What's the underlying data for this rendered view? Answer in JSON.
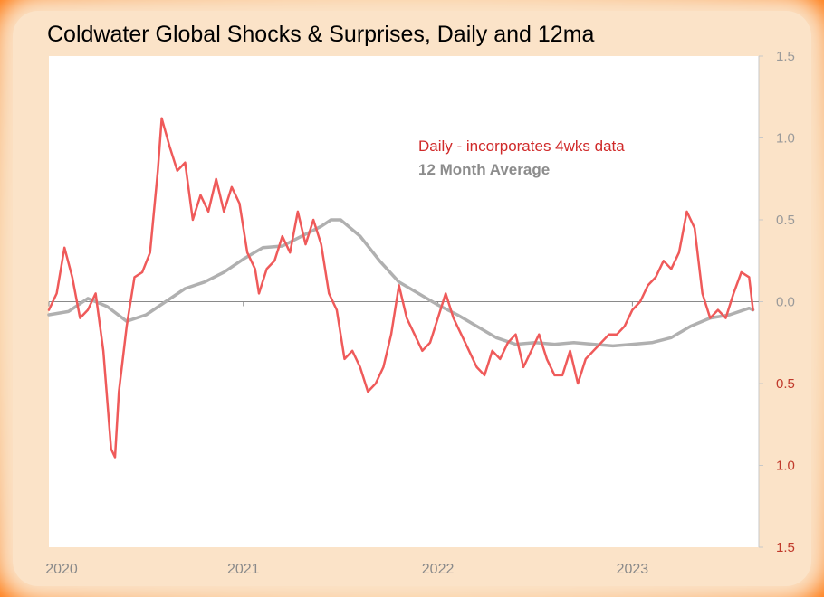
{
  "chart_data": {
    "type": "line",
    "title": "Coldwater Global Shocks  & Surprises, Daily and  12ma",
    "ylim": [
      -1.5,
      1.5
    ],
    "y_axis_inverted_labels": "negative values labelled without sign, drawn in red",
    "y_ticks": [
      {
        "value": 1.5,
        "label": "1.5",
        "color": "#9a9a9a"
      },
      {
        "value": 1.0,
        "label": "1.0",
        "color": "#9a9a9a"
      },
      {
        "value": 0.5,
        "label": "0.5",
        "color": "#9a9a9a"
      },
      {
        "value": 0.0,
        "label": "0.0",
        "color": "#9a9a9a"
      },
      {
        "value": -0.5,
        "label": "0.5",
        "color": "#c0392b"
      },
      {
        "value": -1.0,
        "label": "1.0",
        "color": "#c0392b"
      },
      {
        "value": -1.5,
        "label": "1.5",
        "color": "#c0392b"
      }
    ],
    "x_ticks": [
      {
        "value": 2020.0,
        "label": "2020"
      },
      {
        "value": 2021.0,
        "label": "2021"
      },
      {
        "value": 2022.0,
        "label": "2022"
      },
      {
        "value": 2023.0,
        "label": "2023"
      }
    ],
    "xlim": [
      2020.0,
      2023.65
    ],
    "legend": [
      {
        "label": "Daily - incorporates  4wks data",
        "color": "#d02a2a"
      },
      {
        "label": "12 Month Average",
        "color": "#8c8c8c"
      }
    ],
    "series": [
      {
        "name": "Daily - incorporates  4wks data",
        "color": "#ef5a5a",
        "x": [
          2020.0,
          2020.04,
          2020.08,
          2020.12,
          2020.16,
          2020.2,
          2020.24,
          2020.28,
          2020.32,
          2020.34,
          2020.36,
          2020.4,
          2020.44,
          2020.48,
          2020.52,
          2020.56,
          2020.58,
          2020.62,
          2020.66,
          2020.7,
          2020.74,
          2020.78,
          2020.82,
          2020.86,
          2020.9,
          2020.94,
          2020.98,
          2021.02,
          2021.06,
          2021.08,
          2021.12,
          2021.16,
          2021.2,
          2021.24,
          2021.28,
          2021.32,
          2021.36,
          2021.4,
          2021.44,
          2021.48,
          2021.52,
          2021.56,
          2021.6,
          2021.64,
          2021.68,
          2021.72,
          2021.76,
          2021.8,
          2021.84,
          2021.88,
          2021.92,
          2021.96,
          2022.0,
          2022.04,
          2022.08,
          2022.12,
          2022.16,
          2022.2,
          2022.24,
          2022.28,
          2022.32,
          2022.36,
          2022.4,
          2022.44,
          2022.48,
          2022.52,
          2022.56,
          2022.6,
          2022.64,
          2022.68,
          2022.72,
          2022.76,
          2022.8,
          2022.84,
          2022.88,
          2022.92,
          2022.96,
          2023.0,
          2023.04,
          2023.08,
          2023.12,
          2023.16,
          2023.2,
          2023.24,
          2023.28,
          2023.32,
          2023.36,
          2023.4,
          2023.44,
          2023.48,
          2023.52,
          2023.56,
          2023.6,
          2023.62
        ],
        "y": [
          -0.05,
          0.05,
          0.33,
          0.15,
          -0.1,
          -0.05,
          0.05,
          -0.3,
          -0.9,
          -0.95,
          -0.55,
          -0.15,
          0.15,
          0.18,
          0.3,
          0.8,
          1.12,
          0.95,
          0.8,
          0.85,
          0.5,
          0.65,
          0.55,
          0.75,
          0.55,
          0.7,
          0.6,
          0.3,
          0.2,
          0.05,
          0.2,
          0.25,
          0.4,
          0.3,
          0.55,
          0.35,
          0.5,
          0.35,
          0.05,
          -0.05,
          -0.35,
          -0.3,
          -0.4,
          -0.55,
          -0.5,
          -0.4,
          -0.2,
          0.1,
          -0.1,
          -0.2,
          -0.3,
          -0.25,
          -0.1,
          0.05,
          -0.1,
          -0.2,
          -0.3,
          -0.4,
          -0.45,
          -0.3,
          -0.35,
          -0.25,
          -0.2,
          -0.4,
          -0.3,
          -0.2,
          -0.35,
          -0.45,
          -0.45,
          -0.3,
          -0.5,
          -0.35,
          -0.3,
          -0.25,
          -0.2,
          -0.2,
          -0.15,
          -0.05,
          0.0,
          0.1,
          0.15,
          0.25,
          0.2,
          0.3,
          0.55,
          0.45,
          0.05,
          -0.1,
          -0.05,
          -0.1,
          0.05,
          0.18,
          0.15,
          -0.05
        ]
      },
      {
        "name": "12 Month Average",
        "color": "#b0b0b0",
        "x": [
          2020.0,
          2020.1,
          2020.2,
          2020.3,
          2020.4,
          2020.5,
          2020.6,
          2020.7,
          2020.8,
          2020.9,
          2021.0,
          2021.1,
          2021.2,
          2021.3,
          2021.4,
          2021.45,
          2021.5,
          2021.6,
          2021.7,
          2021.8,
          2021.9,
          2022.0,
          2022.1,
          2022.2,
          2022.3,
          2022.4,
          2022.5,
          2022.6,
          2022.7,
          2022.8,
          2022.9,
          2023.0,
          2023.1,
          2023.2,
          2023.3,
          2023.4,
          2023.5,
          2023.6,
          2023.62
        ],
        "y": [
          -0.08,
          -0.06,
          0.02,
          -0.03,
          -0.12,
          -0.08,
          0.0,
          0.08,
          0.12,
          0.18,
          0.26,
          0.33,
          0.34,
          0.4,
          0.46,
          0.5,
          0.5,
          0.4,
          0.25,
          0.12,
          0.05,
          -0.02,
          -0.08,
          -0.15,
          -0.22,
          -0.26,
          -0.25,
          -0.26,
          -0.25,
          -0.26,
          -0.27,
          -0.26,
          -0.25,
          -0.22,
          -0.15,
          -0.1,
          -0.08,
          -0.04,
          -0.05
        ]
      }
    ]
  }
}
